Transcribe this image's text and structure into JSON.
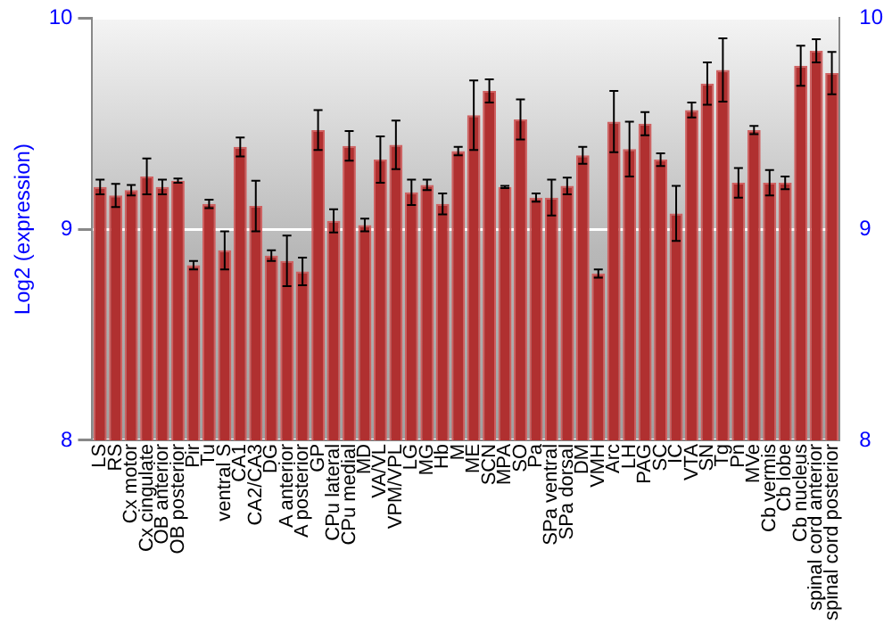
{
  "chart_data": {
    "type": "bar",
    "ylabel": "Log2 (expression)",
    "categories": [
      "LS",
      "RS",
      "Cx motor",
      "Cx cingulate",
      "OB anterior",
      "OB posterior",
      "Pir",
      "Tu",
      "ventral S",
      "CA1",
      "CA2/CA3",
      "DG",
      "A anterior",
      "A posterior",
      "GP",
      "CPu lateral",
      "CPu medial",
      "MD",
      "VA/VL",
      "VPM/VPL",
      "LG",
      "MG",
      "Hb",
      "M",
      "ME",
      "SCN",
      "MPA",
      "SO",
      "Pa",
      "SPa ventral",
      "SPa dorsal",
      "DM",
      "VMH",
      "Arc",
      "LH",
      "PAG",
      "SC",
      "IC",
      "VTA",
      "SN",
      "Tg",
      "Pn",
      "MVe",
      "Cb vermis",
      "Cb lobe",
      "Cb nucleus",
      "spinal cord anterior",
      "spinal cord posterior"
    ],
    "values": [
      9.2,
      9.16,
      9.185,
      9.25,
      9.2,
      9.23,
      8.83,
      9.12,
      8.9,
      9.39,
      9.11,
      8.875,
      8.85,
      8.8,
      9.47,
      9.04,
      9.395,
      9.02,
      9.33,
      9.4,
      9.175,
      9.21,
      9.12,
      9.37,
      9.54,
      9.655,
      9.2,
      9.52,
      9.15,
      9.15,
      9.205,
      9.35,
      8.79,
      9.51,
      9.38,
      9.5,
      9.33,
      9.075,
      9.565,
      9.69,
      9.755,
      9.22,
      9.47,
      9.22,
      9.22,
      9.775,
      9.845,
      9.74
    ],
    "errors": [
      0.035,
      0.055,
      0.025,
      0.085,
      0.035,
      0.01,
      0.02,
      0.02,
      0.09,
      0.045,
      0.12,
      0.025,
      0.12,
      0.065,
      0.095,
      0.055,
      0.07,
      0.03,
      0.11,
      0.115,
      0.06,
      0.025,
      0.05,
      0.02,
      0.165,
      0.055,
      0.005,
      0.095,
      0.02,
      0.085,
      0.04,
      0.04,
      0.02,
      0.145,
      0.13,
      0.055,
      0.03,
      0.13,
      0.035,
      0.1,
      0.15,
      0.07,
      0.02,
      0.06,
      0.03,
      0.095,
      0.055,
      0.1
    ],
    "color": "#b03030",
    "ylim": [
      8,
      10
    ],
    "yticks": [
      8,
      9,
      10
    ],
    "y2lim": [
      8,
      10
    ],
    "y2ticks": [
      8,
      9,
      10
    ],
    "grid": "y",
    "legend": false
  }
}
